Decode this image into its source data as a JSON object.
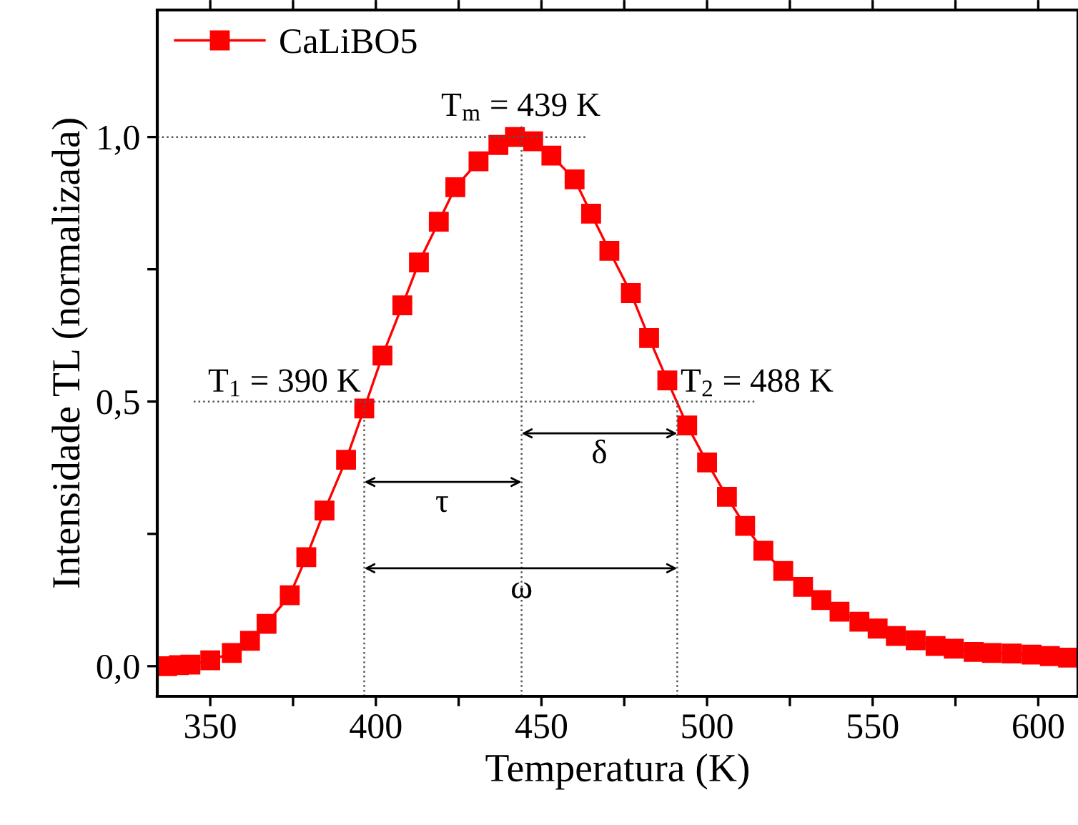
{
  "chart_data": {
    "type": "line",
    "xlabel": "Temperatura (K)",
    "ylabel": "Intensidade TL (normalizada)",
    "xlim": [
      334,
      612
    ],
    "ylim": [
      -0.057,
      1.24
    ],
    "xticks": [
      350,
      {
        "value": 375,
        "label": null
      },
      400,
      {
        "value": 425,
        "label": null
      },
      450,
      {
        "value": 475,
        "label": null
      },
      500,
      {
        "value": 525,
        "label": null
      },
      550,
      {
        "value": 575,
        "label": null
      },
      600
    ],
    "yticks": [
      {
        "value": 0,
        "label": "0,0"
      },
      {
        "value": 0.25,
        "label": null
      },
      {
        "value": 0.5,
        "label": "0,5"
      },
      {
        "value": 0.75,
        "label": null
      },
      {
        "value": 1.0,
        "label": "1,0"
      }
    ],
    "grid": false,
    "legend": "top left",
    "series": [
      {
        "name": "CaLiBO5",
        "color": "#ff0000",
        "marker": "square",
        "line_style": "solid",
        "x": [
          337,
          340.5,
          344,
          350,
          356.5,
          362,
          367,
          374,
          379,
          384.5,
          391,
          396.5,
          402,
          408,
          413,
          419,
          424,
          431,
          437,
          442,
          447.5,
          453,
          460,
          465,
          470.5,
          477,
          482.5,
          488,
          494,
          500,
          506,
          511.5,
          517,
          523,
          529,
          534.5,
          540,
          546,
          551.5,
          557,
          563,
          569,
          574.5,
          580.5,
          586,
          592,
          598,
          603.5,
          609
        ],
        "values": [
          0.0,
          0.002,
          0.003,
          0.011,
          0.025,
          0.048,
          0.08,
          0.134,
          0.206,
          0.294,
          0.39,
          0.487,
          0.587,
          0.682,
          0.763,
          0.84,
          0.905,
          0.954,
          0.985,
          1.0,
          0.992,
          0.965,
          0.92,
          0.855,
          0.785,
          0.705,
          0.62,
          0.54,
          0.455,
          0.385,
          0.32,
          0.265,
          0.218,
          0.18,
          0.15,
          0.125,
          0.103,
          0.084,
          0.071,
          0.057,
          0.049,
          0.038,
          0.033,
          0.027,
          0.025,
          0.024,
          0.022,
          0.019,
          0.016
        ]
      },
      {
        "color": "#555555",
        "marker": "none",
        "line_style": "dotted",
        "x": [
          334,
          464
        ],
        "values": [
          1.0,
          1.0
        ]
      },
      {
        "color": "#555555",
        "marker": "none",
        "line_style": "dotted",
        "x": [
          345,
          515
        ],
        "values": [
          0.5,
          0.5
        ]
      },
      {
        "color": "#555555",
        "marker": "none",
        "line_style": "dotted",
        "x": [
          396.5,
          396.5
        ],
        "values": [
          -0.057,
          0.5
        ]
      },
      {
        "color": "#555555",
        "marker": "none",
        "line_style": "dotted",
        "x": [
          444,
          444
        ],
        "values": [
          -0.057,
          1.02
        ]
      },
      {
        "color": "#555555",
        "marker": "none",
        "line_style": "dotted",
        "x": [
          491,
          491
        ],
        "values": [
          -0.057,
          0.5
        ]
      },
      {
        "color": "#000000",
        "line_style": "solid",
        "x": [
          396.5,
          444
        ],
        "values": [
          0.348,
          0.348
        ]
      },
      {
        "color": "#000000",
        "line_style": "solid",
        "x": [
          444,
          491
        ],
        "values": [
          0.44,
          0.44
        ]
      },
      {
        "color": "#000000",
        "line_style": "solid",
        "x": [
          396.5,
          491
        ],
        "values": [
          0.185,
          0.185
        ]
      }
    ],
    "annotations": [
      "T$_{m}$ = 439 K",
      {
        "text": "T$_{1}$ = 390 K",
        "x": 396.5,
        "y": 0.5
      },
      {
        "text": "T$_{2}$ = 488 K",
        "x": 491,
        "y": 0.5
      },
      {
        "text": "τ",
        "x": 420,
        "y": 0.348
      },
      {
        "text": "δ",
        "x": 467.5,
        "y": 0.44
      },
      {
        "text": "ω",
        "x": 444,
        "y": 0.185
      }
    ]
  }
}
